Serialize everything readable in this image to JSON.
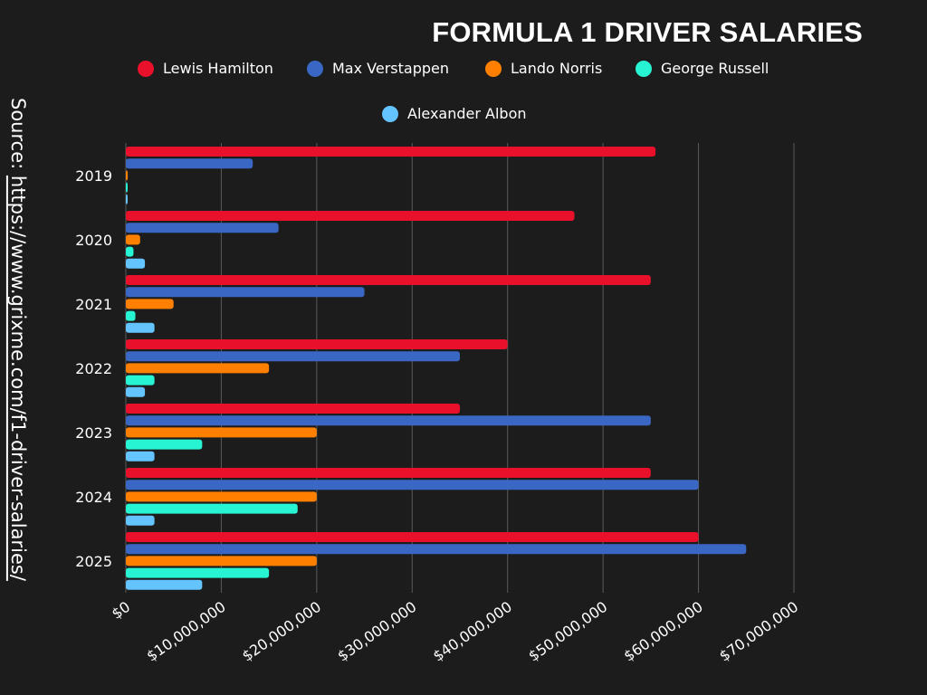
{
  "chart_data": {
    "type": "bar",
    "orientation": "horizontal",
    "title": "FORMULA 1 DRIVER SALARIES",
    "categories": [
      "2019",
      "2020",
      "2021",
      "2022",
      "2023",
      "2024",
      "2025"
    ],
    "series": [
      {
        "name": "Lewis Hamilton",
        "color": "#e8102b",
        "values": [
          55500000,
          47000000,
          55000000,
          40000000,
          35000000,
          55000000,
          60000000
        ]
      },
      {
        "name": "Max Verstappen",
        "color": "#3a66c4",
        "values": [
          13300000,
          16000000,
          25000000,
          35000000,
          55000000,
          60000000,
          65000000
        ]
      },
      {
        "name": "Lando Norris",
        "color": "#ff8000",
        "values": [
          200000,
          1500000,
          5000000,
          15000000,
          20000000,
          20000000,
          20000000
        ]
      },
      {
        "name": "George Russell",
        "color": "#27f4d2",
        "values": [
          100000,
          800000,
          1000000,
          3000000,
          8000000,
          18000000,
          15000000
        ]
      },
      {
        "name": "Alexander Albon",
        "color": "#64c4ff",
        "values": [
          100000,
          2000000,
          3000000,
          2000000,
          3000000,
          3000000,
          8000000
        ]
      }
    ],
    "xlim": [
      0,
      70000000
    ],
    "xticks": [
      "$0",
      "$10,000,000",
      "$20,000,000",
      "$30,000,000",
      "$40,000,000",
      "$50,000,000",
      "$60,000,000",
      "$70,000,000"
    ],
    "xlabel": "",
    "ylabel": "",
    "grid": "vertical",
    "legend_position": "top"
  },
  "source": {
    "prefix": "Source: ",
    "url": "https://www.grixme.com/f1-driver-salaries/"
  }
}
